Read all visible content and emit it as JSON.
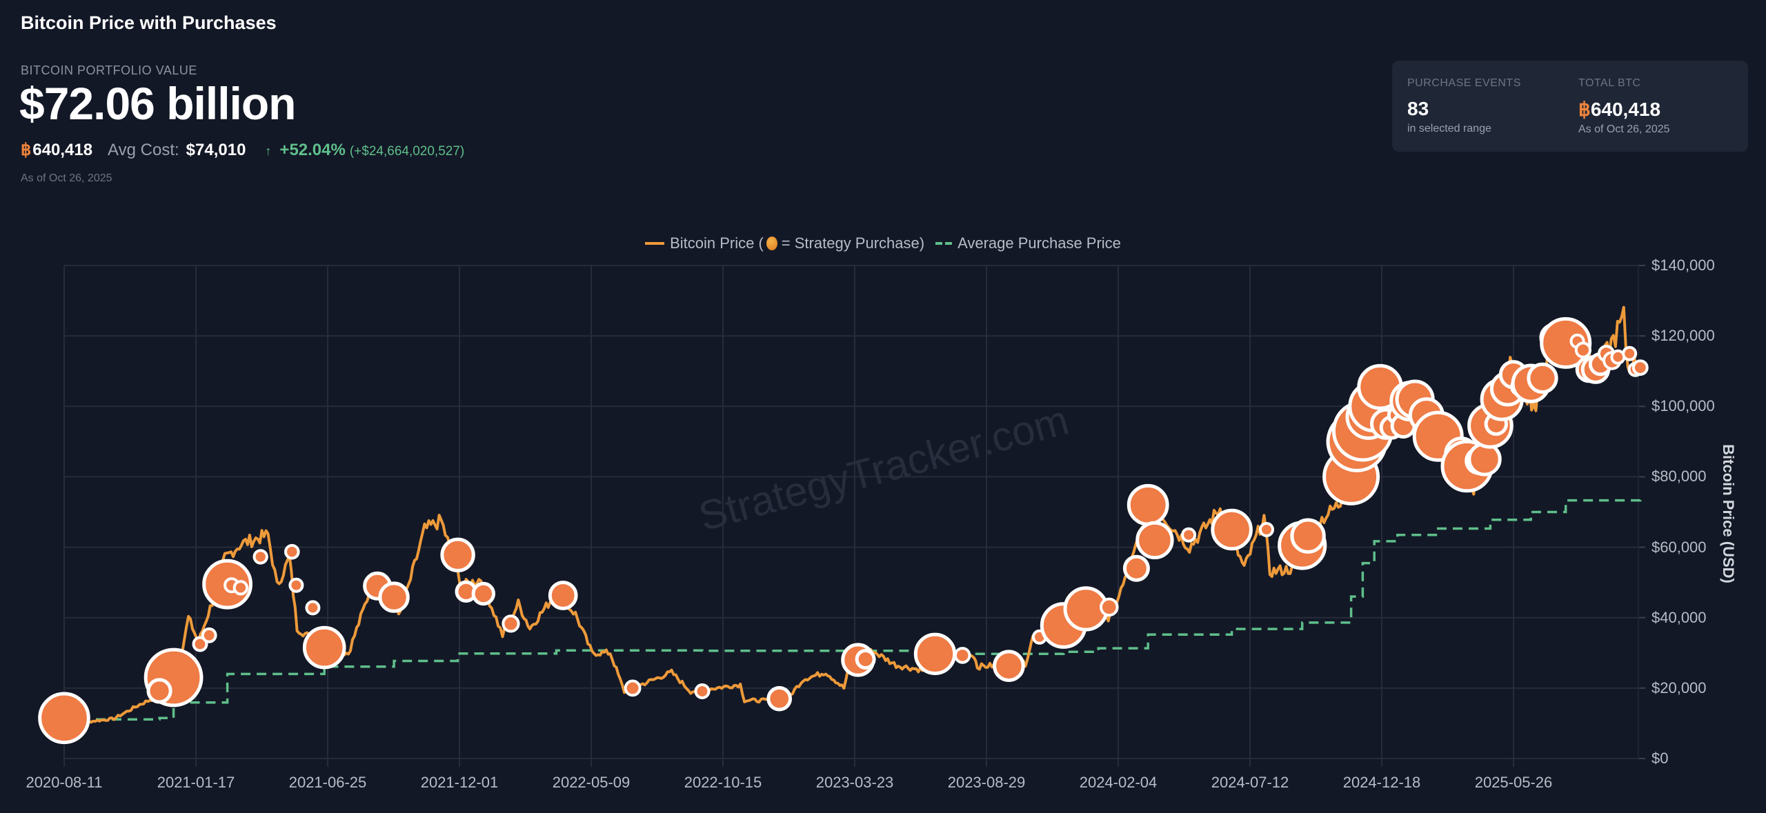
{
  "header": {
    "title": "Bitcoin Price with Purchases",
    "portfolio_label": "BITCOIN PORTFOLIO VALUE",
    "portfolio_value": "$72.06 billion",
    "btc_symbol": "฿",
    "btc_holdings": "640,418",
    "avg_cost_label": "Avg Cost:",
    "avg_cost_value": "$74,010",
    "change_arrow": "↑",
    "change_pct": "+52.04%",
    "change_abs": "(+$24,664,020,527)",
    "as_of": "As of Oct 26, 2025"
  },
  "stats": {
    "purchase_events_label": "PURCHASE EVENTS",
    "purchase_events_value": "83",
    "purchase_events_sub": "in selected range",
    "total_btc_label": "TOTAL BTC",
    "total_btc_symbol": "฿",
    "total_btc_value": "640,418",
    "total_btc_sub": "As of Oct 26, 2025"
  },
  "legend": {
    "price_label_pre": "Bitcoin Price (",
    "price_label_post": " = Strategy Purchase)",
    "avg_label": "Average Purchase Price"
  },
  "watermark": "StrategyTracker.com",
  "colors": {
    "background": "#131826",
    "price_line": "#ee9a3a",
    "purchase_bubble": "#ef7b45",
    "bubble_stroke": "#ffffff",
    "avg_line": "#5fbf8b",
    "grid": "#262c3a",
    "positive": "#5fbf8b",
    "btc_orange": "#f0843c"
  },
  "chart_data": {
    "type": "line",
    "title": "Bitcoin Price with Purchases",
    "xlabel": "",
    "ylabel": "Bitcoin Price (USD)",
    "ylim": [
      0,
      140000
    ],
    "y_ticks": [
      "$0",
      "$20,000",
      "$40,000",
      "$60,000",
      "$80,000",
      "$100,000",
      "$120,000",
      "$140,000"
    ],
    "x_ticks": [
      "2020-08-11",
      "2021-01-17",
      "2021-06-25",
      "2021-12-01",
      "2022-05-09",
      "2022-10-15",
      "2023-03-23",
      "2023-08-29",
      "2024-02-04",
      "2024-07-12",
      "2024-12-18",
      "2025-05-26"
    ],
    "grid": true,
    "legend_position": "top-center",
    "series": [
      {
        "name": "Bitcoin Price",
        "style": "line",
        "points": [
          [
            "2020-08-11",
            11500
          ],
          [
            "2020-09-10",
            10500
          ],
          [
            "2020-10-10",
            11300
          ],
          [
            "2020-11-10",
            15300
          ],
          [
            "2020-12-10",
            18500
          ],
          [
            "2020-12-28",
            26500
          ],
          [
            "2021-01-08",
            40000
          ],
          [
            "2021-01-20",
            33000
          ],
          [
            "2021-02-08",
            46000
          ],
          [
            "2021-02-21",
            57000
          ],
          [
            "2021-03-13",
            61000
          ],
          [
            "2021-04-14",
            63500
          ],
          [
            "2021-04-25",
            49000
          ],
          [
            "2021-05-10",
            57000
          ],
          [
            "2021-05-19",
            37000
          ],
          [
            "2021-06-22",
            31500
          ],
          [
            "2021-07-20",
            29800
          ],
          [
            "2021-08-14",
            47000
          ],
          [
            "2021-09-07",
            47000
          ],
          [
            "2021-09-21",
            41000
          ],
          [
            "2021-10-20",
            65000
          ],
          [
            "2021-11-09",
            67500
          ],
          [
            "2021-12-04",
            49000
          ],
          [
            "2021-12-27",
            51000
          ],
          [
            "2022-01-22",
            35000
          ],
          [
            "2022-02-10",
            44000
          ],
          [
            "2022-02-24",
            37000
          ],
          [
            "2022-03-28",
            47000
          ],
          [
            "2022-04-20",
            41000
          ],
          [
            "2022-05-10",
            30000
          ],
          [
            "2022-06-01",
            30000
          ],
          [
            "2022-06-18",
            19000
          ],
          [
            "2022-08-14",
            24500
          ],
          [
            "2022-09-06",
            19000
          ],
          [
            "2022-11-05",
            21000
          ],
          [
            "2022-11-10",
            16500
          ],
          [
            "2022-12-30",
            16500
          ],
          [
            "2023-01-20",
            22500
          ],
          [
            "2023-02-16",
            24500
          ],
          [
            "2023-03-10",
            20000
          ],
          [
            "2023-03-18",
            28000
          ],
          [
            "2023-04-14",
            30500
          ],
          [
            "2023-05-12",
            26500
          ],
          [
            "2023-06-15",
            25000
          ],
          [
            "2023-06-22",
            30300
          ],
          [
            "2023-08-14",
            29300
          ],
          [
            "2023-08-18",
            26100
          ],
          [
            "2023-10-15",
            27000
          ],
          [
            "2023-10-24",
            34500
          ],
          [
            "2023-12-08",
            44000
          ],
          [
            "2024-01-11",
            46500
          ],
          [
            "2024-01-23",
            39500
          ],
          [
            "2024-02-15",
            52000
          ],
          [
            "2024-03-14",
            73000
          ],
          [
            "2024-04-30",
            60000
          ],
          [
            "2024-06-06",
            71000
          ],
          [
            "2024-07-05",
            54000
          ],
          [
            "2024-07-29",
            68500
          ],
          [
            "2024-08-05",
            53000
          ],
          [
            "2024-09-06",
            54000
          ],
          [
            "2024-09-27",
            66000
          ],
          [
            "2024-10-29",
            72500
          ],
          [
            "2024-11-13",
            90000
          ],
          [
            "2024-12-17",
            106000
          ],
          [
            "2025-01-13",
            94500
          ],
          [
            "2025-01-20",
            106000
          ],
          [
            "2025-02-25",
            87000
          ],
          [
            "2025-03-10",
            79000
          ],
          [
            "2025-04-08",
            76500
          ],
          [
            "2025-05-22",
            111000
          ],
          [
            "2025-06-22",
            100000
          ],
          [
            "2025-07-14",
            122000
          ],
          [
            "2025-08-02",
            113000
          ],
          [
            "2025-08-14",
            123500
          ],
          [
            "2025-09-01",
            108000
          ],
          [
            "2025-10-06",
            125000
          ],
          [
            "2025-10-11",
            111000
          ],
          [
            "2025-10-26",
            113000
          ]
        ]
      },
      {
        "name": "Average Purchase Price",
        "style": "dashed-step",
        "points": [
          [
            "2020-08-11",
            11100
          ],
          [
            "2020-12-04",
            11500
          ],
          [
            "2020-12-21",
            15900
          ],
          [
            "2021-02-24",
            24000
          ],
          [
            "2021-06-21",
            26100
          ],
          [
            "2021-09-13",
            27700
          ],
          [
            "2021-11-29",
            29800
          ],
          [
            "2022-03-28",
            30700
          ],
          [
            "2022-09-20",
            30600
          ],
          [
            "2023-06-28",
            29700
          ],
          [
            "2023-11-30",
            30300
          ],
          [
            "2024-01-11",
            31300
          ],
          [
            "2024-03-11",
            35200
          ],
          [
            "2024-06-20",
            36800
          ],
          [
            "2024-09-13",
            38600
          ],
          [
            "2024-11-11",
            46000
          ],
          [
            "2024-11-25",
            55500
          ],
          [
            "2024-12-09",
            61700
          ],
          [
            "2025-01-06",
            63500
          ],
          [
            "2025-02-24",
            65300
          ],
          [
            "2025-04-28",
            67800
          ],
          [
            "2025-06-16",
            70000
          ],
          [
            "2025-07-28",
            73300
          ],
          [
            "2025-10-26",
            74000
          ]
        ]
      },
      {
        "name": "Strategy Purchase",
        "style": "bubble",
        "points": [
          [
            "2020-08-11",
            11500,
            21454
          ],
          [
            "2020-12-21",
            23000,
            29646
          ],
          [
            "2020-12-04",
            19200,
            2574
          ],
          [
            "2021-01-22",
            32500,
            314
          ],
          [
            "2021-02-02",
            35000,
            295
          ],
          [
            "2021-02-24",
            49500,
            19452
          ],
          [
            "2021-03-01",
            49200,
            328
          ],
          [
            "2021-03-12",
            48500,
            262
          ],
          [
            "2021-04-05",
            57300,
            253
          ],
          [
            "2021-05-13",
            58700,
            271
          ],
          [
            "2021-05-18",
            49200,
            229
          ],
          [
            "2021-06-07",
            42800,
            13
          ],
          [
            "2021-06-21",
            31500,
            13005
          ],
          [
            "2021-08-24",
            49000,
            3907
          ],
          [
            "2021-09-13",
            45800,
            5050
          ],
          [
            "2021-11-29",
            57800,
            7002
          ],
          [
            "2021-12-09",
            47400,
            1434
          ],
          [
            "2021-12-30",
            46800,
            1914
          ],
          [
            "2022-02-01",
            38300,
            660
          ],
          [
            "2022-04-05",
            46300,
            4167
          ],
          [
            "2022-06-28",
            20000,
            480
          ],
          [
            "2022-09-20",
            19100,
            301
          ],
          [
            "2022-12-22",
            17000,
            2395
          ],
          [
            "2023-03-27",
            28000,
            6455
          ],
          [
            "2023-04-05",
            28200,
            1045
          ],
          [
            "2023-06-28",
            29700,
            12333
          ],
          [
            "2023-07-31",
            29300,
            467
          ],
          [
            "2023-09-25",
            26300,
            5445
          ],
          [
            "2023-11-01",
            34500,
            155
          ],
          [
            "2023-11-30",
            37800,
            16130
          ],
          [
            "2023-12-27",
            42500,
            14620
          ],
          [
            "2024-01-24",
            43000,
            850
          ],
          [
            "2024-02-26",
            54000,
            3000
          ],
          [
            "2024-03-11",
            72000,
            12000
          ],
          [
            "2024-03-19",
            62000,
            9245
          ],
          [
            "2024-04-29",
            63500,
            122
          ],
          [
            "2024-06-20",
            65000,
            11931
          ],
          [
            "2024-08-01",
            65000,
            169
          ],
          [
            "2024-09-13",
            60500,
            18300
          ],
          [
            "2024-09-20",
            63200,
            7420
          ],
          [
            "2024-11-11",
            80000,
            27200
          ],
          [
            "2024-11-18",
            90000,
            51780
          ],
          [
            "2024-11-25",
            93000,
            55500
          ],
          [
            "2024-12-02",
            97000,
            15400
          ],
          [
            "2024-12-09",
            100000,
            21550
          ],
          [
            "2024-12-16",
            105500,
            15350
          ],
          [
            "2024-12-23",
            95000,
            5262
          ],
          [
            "2024-12-30",
            94000,
            2138
          ],
          [
            "2025-01-06",
            97500,
            1070
          ],
          [
            "2025-01-13",
            94500,
            2530
          ],
          [
            "2025-01-21",
            101500,
            11000
          ],
          [
            "2025-01-27",
            102000,
            10107
          ],
          [
            "2025-02-10",
            97500,
            7633
          ],
          [
            "2025-02-24",
            91500,
            20356
          ],
          [
            "2025-03-17",
            84000,
            130
          ],
          [
            "2025-03-24",
            86500,
            6911
          ],
          [
            "2025-03-31",
            83000,
            22048
          ],
          [
            "2025-04-14",
            84500,
            3459
          ],
          [
            "2025-04-21",
            85000,
            6556
          ],
          [
            "2025-04-28",
            94500,
            15355
          ],
          [
            "2025-05-05",
            95000,
            1895
          ],
          [
            "2025-05-12",
            102000,
            13390
          ],
          [
            "2025-05-19",
            105000,
            7390
          ],
          [
            "2025-05-26",
            109000,
            4020
          ],
          [
            "2025-06-02",
            105500,
            705
          ],
          [
            "2025-06-09",
            106500,
            1045
          ],
          [
            "2025-06-16",
            106500,
            10100
          ],
          [
            "2025-06-23",
            108000,
            245
          ],
          [
            "2025-06-30",
            108000,
            4980
          ],
          [
            "2025-07-14",
            119500,
            4225
          ],
          [
            "2025-07-21",
            118500,
            6220
          ],
          [
            "2025-07-28",
            118000,
            21021
          ],
          [
            "2025-08-11",
            118500,
            155
          ],
          [
            "2025-08-18",
            116000,
            430
          ],
          [
            "2025-08-25",
            110500,
            3081
          ],
          [
            "2025-09-02",
            110500,
            4048
          ],
          [
            "2025-09-08",
            112000,
            1955
          ],
          [
            "2025-09-15",
            115000,
            525
          ],
          [
            "2025-09-22",
            113000,
            850
          ],
          [
            "2025-09-29",
            114000,
            196
          ],
          [
            "2025-10-13",
            115000,
            220
          ],
          [
            "2025-10-20",
            110500,
            168
          ],
          [
            "2025-10-26",
            111000,
            390
          ]
        ]
      }
    ]
  }
}
